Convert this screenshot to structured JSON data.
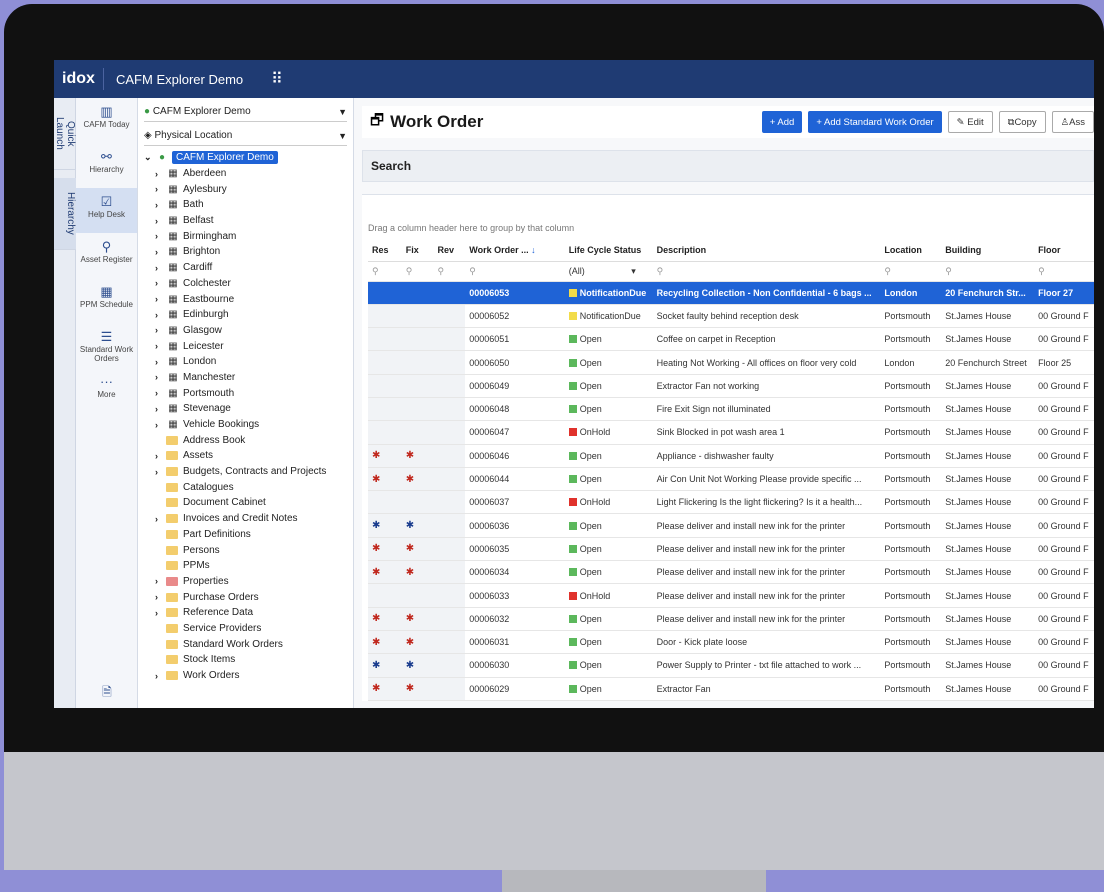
{
  "app": {
    "logo": "idox",
    "title": "CAFM Explorer Demo"
  },
  "vtabs": [
    "Quick Launch",
    "Hierarchy"
  ],
  "nav": [
    {
      "label": "CAFM Today",
      "icon": "calendar-chart-icon"
    },
    {
      "label": "Hierarchy",
      "icon": "hierarchy-icon"
    },
    {
      "label": "Help Desk",
      "icon": "helpdesk-icon",
      "active": true
    },
    {
      "label": "Asset Register",
      "icon": "asset-icon"
    },
    {
      "label": "PPM Schedule",
      "icon": "calendar-icon"
    },
    {
      "label": "Standard Work Orders",
      "icon": "list-icon"
    },
    {
      "label": "More",
      "icon": "more-icon"
    }
  ],
  "tree": {
    "dropdown1": "CAFM Explorer Demo",
    "dropdown2": "Physical Location",
    "root": "CAFM Explorer Demo",
    "buildings": [
      "Aberdeen",
      "Aylesbury",
      "Bath",
      "Belfast",
      "Birmingham",
      "Brighton",
      "Cardiff",
      "Colchester",
      "Eastbourne",
      "Edinburgh",
      "Glasgow",
      "Leicester",
      "London",
      "Manchester",
      "Portsmouth",
      "Stevenage",
      "Vehicle Bookings"
    ],
    "folders": [
      {
        "label": "Address Book",
        "expand": false
      },
      {
        "label": "Assets",
        "expand": true
      },
      {
        "label": "Budgets, Contracts and Projects",
        "expand": true
      },
      {
        "label": "Catalogues",
        "expand": false
      },
      {
        "label": "Document Cabinet",
        "expand": false
      },
      {
        "label": "Invoices and Credit Notes",
        "expand": true
      },
      {
        "label": "Part Definitions",
        "expand": false
      },
      {
        "label": "Persons",
        "expand": false
      },
      {
        "label": "PPMs",
        "expand": false
      },
      {
        "label": "Properties",
        "expand": true,
        "red": true
      },
      {
        "label": "Purchase Orders",
        "expand": true
      },
      {
        "label": "Reference Data",
        "expand": true
      },
      {
        "label": "Service Providers",
        "expand": false
      },
      {
        "label": "Standard Work Orders",
        "expand": false
      },
      {
        "label": "Stock Items",
        "expand": false
      },
      {
        "label": "Work Orders",
        "expand": true
      }
    ]
  },
  "toolbar": {
    "title": "Work Order",
    "add": "+ Add",
    "add_std": "+ Add Standard Work Order",
    "edit": "Edit",
    "copy": "Copy",
    "assign": "Ass"
  },
  "search": {
    "label": "Search"
  },
  "grid": {
    "group_hint": "Drag a column header here to group by that column",
    "columns": [
      "Res",
      "Fix",
      "Rev",
      "Work Order ...",
      "Life Cycle Status",
      "Description",
      "Location",
      "Building",
      "Floor"
    ],
    "filter_all": "(All)",
    "rows": [
      {
        "res": "",
        "fix": "",
        "wo": "00006053",
        "status": "NotificationDue",
        "color": "#f2dc4a",
        "desc": "Recycling Collection - Non Confidential - 6 bags ...",
        "loc": "London",
        "bld": "20 Fenchurch Str...",
        "floor": "Floor 27",
        "sel": true
      },
      {
        "res": "",
        "fix": "",
        "wo": "00006052",
        "status": "NotificationDue",
        "color": "#f2dc4a",
        "desc": "Socket faulty behind reception desk",
        "loc": "Portsmouth",
        "bld": "St.James House",
        "floor": "00 Ground F"
      },
      {
        "res": "",
        "fix": "",
        "wo": "00006051",
        "status": "Open",
        "color": "#5cb85c",
        "desc": "Coffee on carpet in Reception",
        "loc": "Portsmouth",
        "bld": "St.James House",
        "floor": "00 Ground F"
      },
      {
        "res": "",
        "fix": "",
        "wo": "00006050",
        "status": "Open",
        "color": "#5cb85c",
        "desc": "Heating Not Working - All offices on floor very cold",
        "loc": "London",
        "bld": "20 Fenchurch Street",
        "floor": "Floor 25"
      },
      {
        "res": "",
        "fix": "",
        "wo": "00006049",
        "status": "Open",
        "color": "#5cb85c",
        "desc": "Extractor Fan not working",
        "loc": "Portsmouth",
        "bld": "St.James House",
        "floor": "00 Ground F"
      },
      {
        "res": "",
        "fix": "",
        "wo": "00006048",
        "status": "Open",
        "color": "#5cb85c",
        "desc": "Fire Exit Sign not illuminated",
        "loc": "Portsmouth",
        "bld": "St.James House",
        "floor": "00 Ground F"
      },
      {
        "res": "",
        "fix": "",
        "wo": "00006047",
        "status": "OnHold",
        "color": "#e0322c",
        "desc": "Sink Blocked in pot wash area 1",
        "loc": "Portsmouth",
        "bld": "St.James House",
        "floor": "00 Ground F"
      },
      {
        "res": "red",
        "fix": "red",
        "wo": "00006046",
        "status": "Open",
        "color": "#5cb85c",
        "desc": "Appliance - dishwasher faulty",
        "loc": "Portsmouth",
        "bld": "St.James House",
        "floor": "00 Ground F"
      },
      {
        "res": "red",
        "fix": "red",
        "wo": "00006044",
        "status": "Open",
        "color": "#5cb85c",
        "desc": "Air Con Unit Not Working Please provide specific ...",
        "loc": "Portsmouth",
        "bld": "St.James House",
        "floor": "00 Ground F"
      },
      {
        "res": "",
        "fix": "",
        "wo": "00006037",
        "status": "OnHold",
        "color": "#e0322c",
        "desc": "Light Flickering Is the light flickering? Is it a health...",
        "loc": "Portsmouth",
        "bld": "St.James House",
        "floor": "00 Ground F"
      },
      {
        "res": "blue",
        "fix": "blue",
        "wo": "00006036",
        "status": "Open",
        "color": "#5cb85c",
        "desc": "Please deliver and install new ink for the printer",
        "loc": "Portsmouth",
        "bld": "St.James House",
        "floor": "00 Ground F"
      },
      {
        "res": "red",
        "fix": "red",
        "wo": "00006035",
        "status": "Open",
        "color": "#5cb85c",
        "desc": "Please deliver and install new ink for the printer",
        "loc": "Portsmouth",
        "bld": "St.James House",
        "floor": "00 Ground F"
      },
      {
        "res": "red",
        "fix": "red",
        "wo": "00006034",
        "status": "Open",
        "color": "#5cb85c",
        "desc": "Please deliver and install new ink for the printer",
        "loc": "Portsmouth",
        "bld": "St.James House",
        "floor": "00 Ground F"
      },
      {
        "res": "",
        "fix": "",
        "wo": "00006033",
        "status": "OnHold",
        "color": "#e0322c",
        "desc": "Please deliver and install new ink for the printer",
        "loc": "Portsmouth",
        "bld": "St.James House",
        "floor": "00 Ground F"
      },
      {
        "res": "red",
        "fix": "red",
        "wo": "00006032",
        "status": "Open",
        "color": "#5cb85c",
        "desc": "Please deliver and install new ink for the printer",
        "loc": "Portsmouth",
        "bld": "St.James House",
        "floor": "00 Ground F"
      },
      {
        "res": "red",
        "fix": "red",
        "wo": "00006031",
        "status": "Open",
        "color": "#5cb85c",
        "desc": "Door - Kick plate loose",
        "loc": "Portsmouth",
        "bld": "St.James House",
        "floor": "00 Ground F"
      },
      {
        "res": "blue",
        "fix": "blue",
        "wo": "00006030",
        "status": "Open",
        "color": "#5cb85c",
        "desc": "Power Supply to Printer - txt file attached to work ...",
        "loc": "Portsmouth",
        "bld": "St.James House",
        "floor": "00 Ground F"
      },
      {
        "res": "red",
        "fix": "red",
        "wo": "00006029",
        "status": "Open",
        "color": "#5cb85c",
        "desc": "Extractor Fan",
        "loc": "Portsmouth",
        "bld": "St.James House",
        "floor": "00 Ground F"
      }
    ]
  }
}
